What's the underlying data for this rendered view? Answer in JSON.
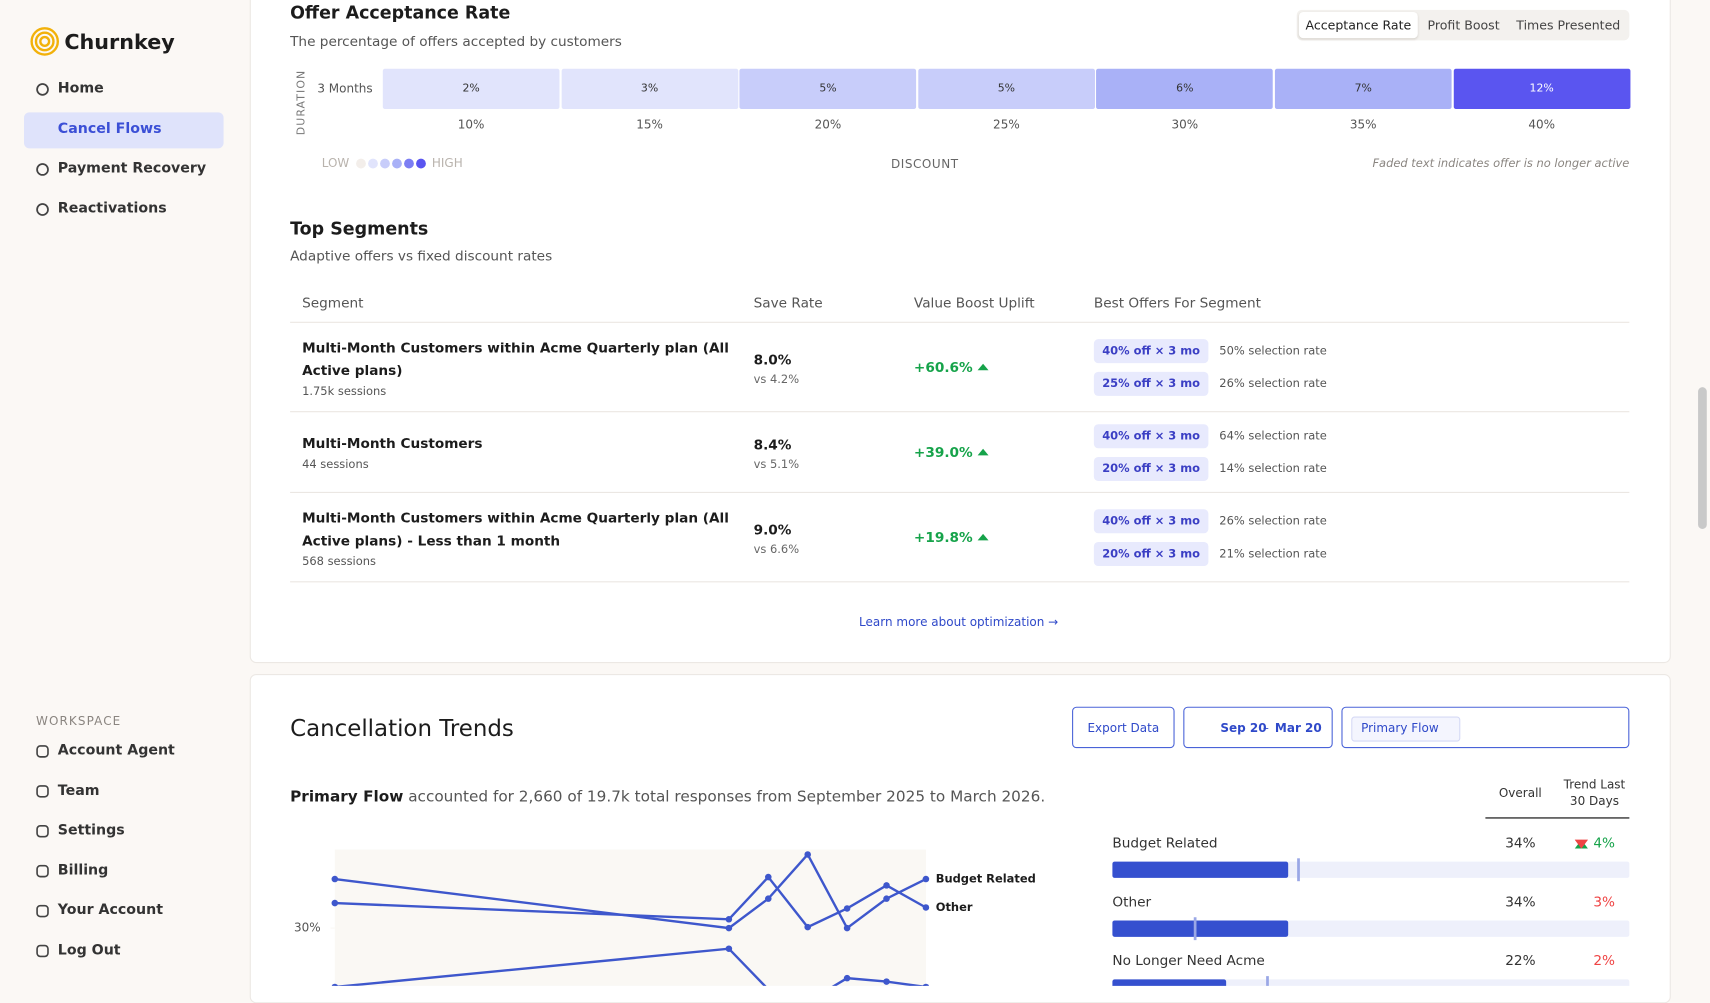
{
  "sidebar": {
    "brand": "Churnkey",
    "nav": [
      "Home",
      "Cancel Flows",
      "Payment Recovery",
      "Reactivations"
    ],
    "active": 1,
    "workspace_label": "WORKSPACE",
    "workspace": [
      "Account Agent",
      "Team",
      "Settings",
      "Billing",
      "Your Account",
      "Log Out"
    ]
  },
  "offer_acceptance": {
    "title": "Offer Acceptance Rate",
    "subtitle": "The percentage of offers accepted by customers",
    "tabs": [
      "Acceptance Rate",
      "Profit Boost",
      "Times Presented"
    ],
    "active_tab": 0,
    "duration_label": "DURATION",
    "row_label": "3 Months",
    "cells": [
      {
        "value": 2,
        "label": "2%"
      },
      {
        "value": 3,
        "label": "3%"
      },
      {
        "value": 5,
        "label": "5%"
      },
      {
        "value": 5,
        "label": "5%"
      },
      {
        "value": 6,
        "label": "6%"
      },
      {
        "value": 7,
        "label": "7%"
      },
      {
        "value": 12,
        "label": "12%"
      }
    ],
    "colors": [
      "#e1e4fc",
      "#e1e4fc",
      "#c8cdfa",
      "#c8cdfa",
      "#a9b1f7",
      "#a9b1f7",
      "#5a55f0"
    ],
    "columns": [
      "10%",
      "15%",
      "20%",
      "25%",
      "30%",
      "35%",
      "40%"
    ],
    "legend_low": "LOW",
    "legend_high": "HIGH",
    "legend_colors": [
      "#f3eeea",
      "#e1e4fc",
      "#c8cdfa",
      "#a9b1f7",
      "#7c7ef3",
      "#5a55f0"
    ],
    "x_label": "DISCOUNT",
    "note": "Faded text indicates offer is no longer active"
  },
  "top_segments": {
    "title": "Top Segments",
    "subtitle": "Adaptive offers vs fixed discount rates",
    "headers": [
      "Segment",
      "Save Rate",
      "Value Boost Uplift",
      "Best Offers For Segment"
    ],
    "rows": [
      {
        "name": "Multi-Month Customers within Acme Quarterly plan (All Active plans)",
        "sessions": "1.75k sessions",
        "save_rate": "8.0%",
        "vs": "vs 4.2%",
        "uplift": "+60.6%",
        "offers": [
          {
            "label": "40% off × 3 mo",
            "rate": "50% selection rate"
          },
          {
            "label": "25% off × 3 mo",
            "rate": "26% selection rate"
          }
        ]
      },
      {
        "name": "Multi-Month Customers",
        "sessions": "44 sessions",
        "save_rate": "8.4%",
        "vs": "vs 5.1%",
        "uplift": "+39.0%",
        "offers": [
          {
            "label": "40% off × 3 mo",
            "rate": "64% selection rate"
          },
          {
            "label": "20% off × 3 mo",
            "rate": "14% selection rate"
          }
        ]
      },
      {
        "name": "Multi-Month Customers within Acme Quarterly plan (All Active plans) - Less than 1 month",
        "sessions": "568 sessions",
        "save_rate": "9.0%",
        "vs": "vs 6.6%",
        "uplift": "+19.8%",
        "offers": [
          {
            "label": "40% off × 3 mo",
            "rate": "26% selection rate"
          },
          {
            "label": "20% off × 3 mo",
            "rate": "21% selection rate"
          }
        ]
      }
    ],
    "link": "Learn more about optimization →"
  },
  "cancellation_trends": {
    "title": "Cancellation Trends",
    "export": "Export Data",
    "date_from": "Sep 20",
    "date_sep": "–",
    "date_to": "Mar 20",
    "filter": "Primary Flow",
    "summary_bold": "Primary Flow",
    "summary_rest": " accounted for 2,660 of 19.7k total responses from September 2025 to March 2026.",
    "chart_data": {
      "type": "line",
      "x": [
        0,
        10,
        11,
        12,
        13,
        14,
        15
      ],
      "xlim": [
        0,
        15
      ],
      "ylim": [
        10,
        46
      ],
      "yticks": [
        {
          "value": 30,
          "label": "30%"
        }
      ],
      "series": [
        {
          "name": "Budget Related",
          "color": "#3e57cc",
          "values": [
            40,
            30,
            36,
            45,
            30,
            36,
            40
          ]
        },
        {
          "name": "Other",
          "color": "#3e57cc",
          "values": [
            35.1,
            31.8,
            40.4,
            30.2,
            34,
            38.7,
            34.2
          ]
        },
        {
          "color": "#3e57cc",
          "values": [
            18,
            25.8,
            17.5,
            15,
            19.8,
            19.1,
            18
          ]
        }
      ]
    },
    "table_headers": [
      "Overall",
      "Trend Last 30 Days"
    ],
    "reasons": [
      {
        "name": "Budget Related",
        "overall": {
          "value": 34,
          "label": "34%"
        },
        "marker": 36,
        "trend": {
          "value": 4,
          "label": "4%",
          "direction": "up"
        }
      },
      {
        "name": "Other",
        "overall": {
          "value": 34,
          "label": "34%"
        },
        "marker": 16,
        "trend": {
          "value": 3,
          "label": "3%",
          "direction": "down"
        }
      },
      {
        "name": "No Longer Need Acme",
        "overall": {
          "value": 22,
          "label": "22%"
        },
        "marker": 30,
        "trend": {
          "value": 2,
          "label": "2%",
          "direction": "down"
        }
      }
    ]
  }
}
